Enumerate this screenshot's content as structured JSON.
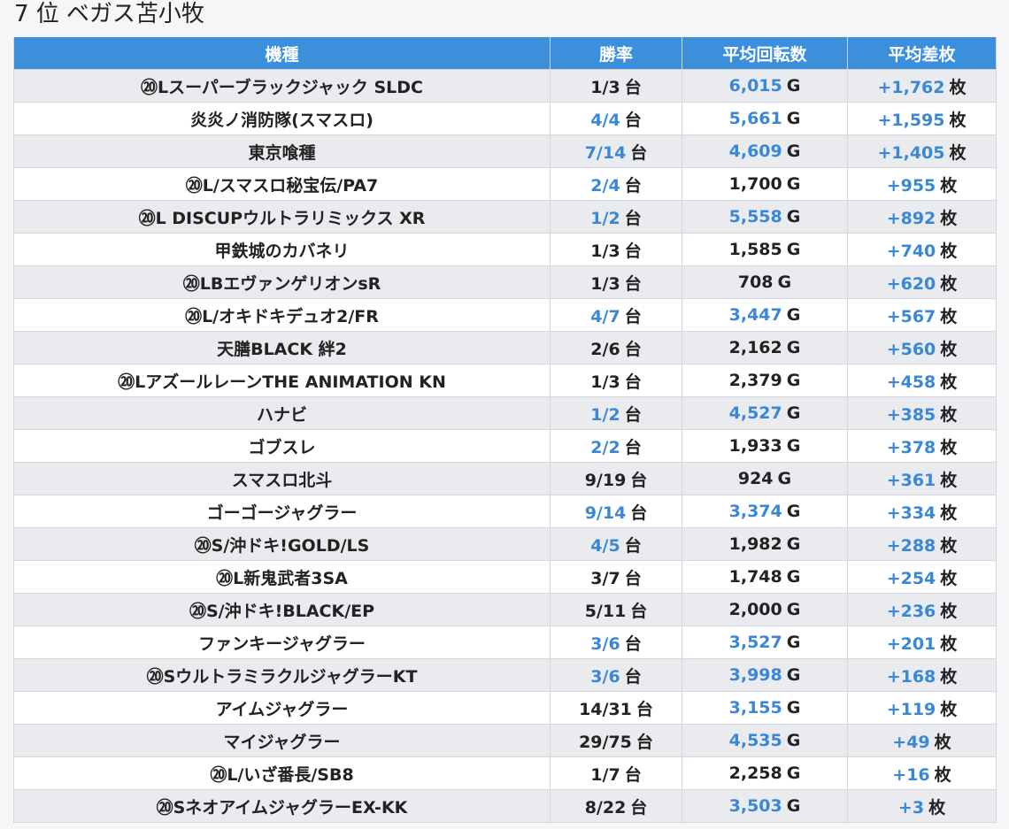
{
  "heading": {
    "rank": "7 位",
    "store": "ベガス苫小牧"
  },
  "colors": {
    "header_bg": "#3b8fdb",
    "accent_blue": "#3a87d6",
    "row_stripe": "#e9ebee",
    "row_plain": "#ffffff"
  },
  "table": {
    "columns": [
      "機種",
      "勝率",
      "平均回転数",
      "平均差枚"
    ],
    "rows": [
      {
        "name": "⑳Lスーパーブラックジャック SLDC",
        "win": "1/3",
        "win_unit": "台",
        "win_hl": false,
        "spins": "6,015",
        "spins_unit": "G",
        "spins_hl": true,
        "diff": "+1,762",
        "diff_unit": "枚"
      },
      {
        "name": "炎炎ノ消防隊(スマスロ)",
        "win": "4/4",
        "win_unit": "台",
        "win_hl": true,
        "spins": "5,661",
        "spins_unit": "G",
        "spins_hl": true,
        "diff": "+1,595",
        "diff_unit": "枚"
      },
      {
        "name": "東京喰種",
        "win": "7/14",
        "win_unit": "台",
        "win_hl": true,
        "spins": "4,609",
        "spins_unit": "G",
        "spins_hl": true,
        "diff": "+1,405",
        "diff_unit": "枚"
      },
      {
        "name": "⑳L/スマスロ秘宝伝/PA7",
        "win": "2/4",
        "win_unit": "台",
        "win_hl": true,
        "spins": "1,700",
        "spins_unit": "G",
        "spins_hl": false,
        "diff": "+955",
        "diff_unit": "枚"
      },
      {
        "name": "⑳L DISCUPウルトラリミックス XR",
        "win": "1/2",
        "win_unit": "台",
        "win_hl": true,
        "spins": "5,558",
        "spins_unit": "G",
        "spins_hl": true,
        "diff": "+892",
        "diff_unit": "枚"
      },
      {
        "name": "甲鉄城のカバネリ",
        "win": "1/3",
        "win_unit": "台",
        "win_hl": false,
        "spins": "1,585",
        "spins_unit": "G",
        "spins_hl": false,
        "diff": "+740",
        "diff_unit": "枚"
      },
      {
        "name": "⑳LBエヴァンゲリオンsR",
        "win": "1/3",
        "win_unit": "台",
        "win_hl": false,
        "spins": "708",
        "spins_unit": "G",
        "spins_hl": false,
        "diff": "+620",
        "diff_unit": "枚"
      },
      {
        "name": "⑳L/オキドキデュオ2/FR",
        "win": "4/7",
        "win_unit": "台",
        "win_hl": true,
        "spins": "3,447",
        "spins_unit": "G",
        "spins_hl": true,
        "diff": "+567",
        "diff_unit": "枚"
      },
      {
        "name": "天膳BLACK 絆2",
        "win": "2/6",
        "win_unit": "台",
        "win_hl": false,
        "spins": "2,162",
        "spins_unit": "G",
        "spins_hl": false,
        "diff": "+560",
        "diff_unit": "枚"
      },
      {
        "name": "⑳LアズールレーンTHE ANIMATION KN",
        "win": "1/3",
        "win_unit": "台",
        "win_hl": false,
        "spins": "2,379",
        "spins_unit": "G",
        "spins_hl": false,
        "diff": "+458",
        "diff_unit": "枚"
      },
      {
        "name": "ハナビ",
        "win": "1/2",
        "win_unit": "台",
        "win_hl": true,
        "spins": "4,527",
        "spins_unit": "G",
        "spins_hl": true,
        "diff": "+385",
        "diff_unit": "枚"
      },
      {
        "name": "ゴブスレ",
        "win": "2/2",
        "win_unit": "台",
        "win_hl": true,
        "spins": "1,933",
        "spins_unit": "G",
        "spins_hl": false,
        "diff": "+378",
        "diff_unit": "枚"
      },
      {
        "name": "スマスロ北斗",
        "win": "9/19",
        "win_unit": "台",
        "win_hl": false,
        "spins": "924",
        "spins_unit": "G",
        "spins_hl": false,
        "diff": "+361",
        "diff_unit": "枚"
      },
      {
        "name": "ゴーゴージャグラー",
        "win": "9/14",
        "win_unit": "台",
        "win_hl": true,
        "spins": "3,374",
        "spins_unit": "G",
        "spins_hl": true,
        "diff": "+334",
        "diff_unit": "枚"
      },
      {
        "name": "⑳S/沖ドキ!GOLD/LS",
        "win": "4/5",
        "win_unit": "台",
        "win_hl": true,
        "spins": "1,982",
        "spins_unit": "G",
        "spins_hl": false,
        "diff": "+288",
        "diff_unit": "枚"
      },
      {
        "name": "⑳L新鬼武者3SA",
        "win": "3/7",
        "win_unit": "台",
        "win_hl": false,
        "spins": "1,748",
        "spins_unit": "G",
        "spins_hl": false,
        "diff": "+254",
        "diff_unit": "枚"
      },
      {
        "name": "⑳S/沖ドキ!BLACK/EP",
        "win": "5/11",
        "win_unit": "台",
        "win_hl": false,
        "spins": "2,000",
        "spins_unit": "G",
        "spins_hl": false,
        "diff": "+236",
        "diff_unit": "枚"
      },
      {
        "name": "ファンキージャグラー",
        "win": "3/6",
        "win_unit": "台",
        "win_hl": true,
        "spins": "3,527",
        "spins_unit": "G",
        "spins_hl": true,
        "diff": "+201",
        "diff_unit": "枚"
      },
      {
        "name": "⑳SウルトラミラクルジャグラーKT",
        "win": "3/6",
        "win_unit": "台",
        "win_hl": true,
        "spins": "3,998",
        "spins_unit": "G",
        "spins_hl": true,
        "diff": "+168",
        "diff_unit": "枚"
      },
      {
        "name": "アイムジャグラー",
        "win": "14/31",
        "win_unit": "台",
        "win_hl": false,
        "spins": "3,155",
        "spins_unit": "G",
        "spins_hl": true,
        "diff": "+119",
        "diff_unit": "枚"
      },
      {
        "name": "マイジャグラー",
        "win": "29/75",
        "win_unit": "台",
        "win_hl": false,
        "spins": "4,535",
        "spins_unit": "G",
        "spins_hl": true,
        "diff": "+49",
        "diff_unit": "枚"
      },
      {
        "name": "⑳L/いざ番長/SB8",
        "win": "1/7",
        "win_unit": "台",
        "win_hl": false,
        "spins": "2,258",
        "spins_unit": "G",
        "spins_hl": false,
        "diff": "+16",
        "diff_unit": "枚"
      },
      {
        "name": "⑳SネオアイムジャグラーEX-KK",
        "win": "8/22",
        "win_unit": "台",
        "win_hl": false,
        "spins": "3,503",
        "spins_unit": "G",
        "spins_hl": true,
        "diff": "+3",
        "diff_unit": "枚"
      }
    ]
  }
}
